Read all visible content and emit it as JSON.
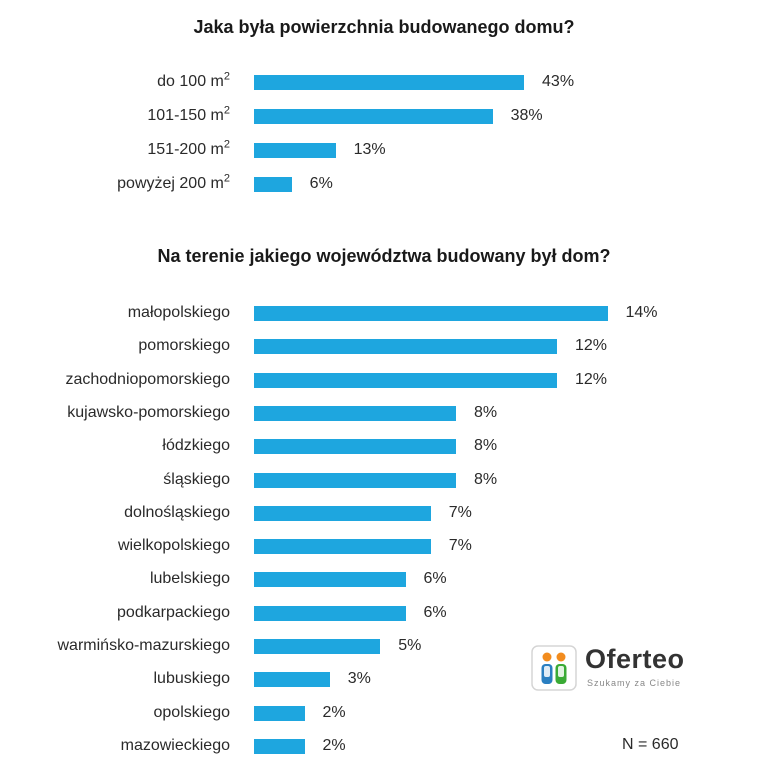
{
  "colors": {
    "bar": "#1ea6df"
  },
  "chart_data": [
    {
      "type": "bar",
      "orientation": "horizontal",
      "title": "Jaka była powierzchnia budowanego domu?",
      "categories": [
        {
          "text": "do 100 m",
          "sup": "2"
        },
        {
          "text": "101-150 m",
          "sup": "2"
        },
        {
          "text": "151-200 m",
          "sup": "2"
        },
        {
          "text": "powyżej 200 m",
          "sup": "2"
        }
      ],
      "values": [
        43,
        38,
        13,
        6
      ],
      "value_labels": [
        "43%",
        "38%",
        "13%",
        "6%"
      ],
      "unit": "%",
      "grid": false,
      "legend": "none"
    },
    {
      "type": "bar",
      "orientation": "horizontal",
      "title": "Na terenie jakiego województwa budowany był dom?",
      "categories": [
        {
          "text": "małopolskiego"
        },
        {
          "text": "pomorskiego"
        },
        {
          "text": "zachodniopomorskiego"
        },
        {
          "text": "kujawsko-pomorskiego"
        },
        {
          "text": "łódzkiego"
        },
        {
          "text": "śląskiego"
        },
        {
          "text": "dolnośląskiego"
        },
        {
          "text": "wielkopolskiego"
        },
        {
          "text": "lubelskiego"
        },
        {
          "text": "podkarpackiego"
        },
        {
          "text": "warmińsko-mazurskiego"
        },
        {
          "text": "lubuskiego"
        },
        {
          "text": "opolskiego"
        },
        {
          "text": "mazowieckiego"
        }
      ],
      "values": [
        14,
        12,
        12,
        8,
        8,
        8,
        7,
        7,
        6,
        6,
        5,
        3,
        2,
        2
      ],
      "value_labels": [
        "14%",
        "12%",
        "12%",
        "8%",
        "8%",
        "8%",
        "7%",
        "7%",
        "6%",
        "6%",
        "5%",
        "3%",
        "2%",
        "2%"
      ],
      "unit": "%",
      "grid": false,
      "legend": "none"
    }
  ],
  "logo": {
    "name": "Oferteo",
    "tagline": "Szukamy za Ciebie"
  },
  "footnote": "N = 660"
}
